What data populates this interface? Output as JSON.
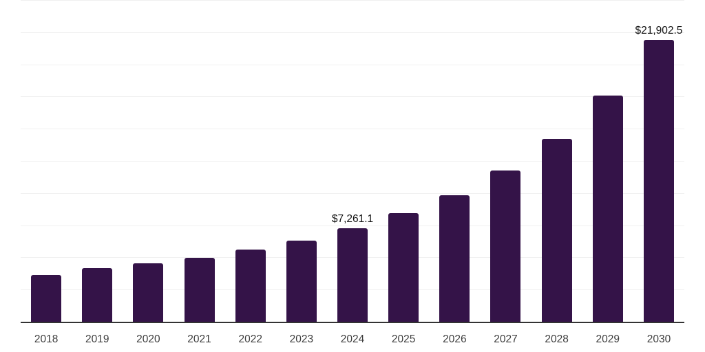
{
  "chart_data": {
    "type": "bar",
    "title": "",
    "xlabel": "",
    "ylabel": "",
    "categories": [
      "2018",
      "2019",
      "2020",
      "2021",
      "2022",
      "2023",
      "2024",
      "2025",
      "2026",
      "2027",
      "2028",
      "2029",
      "2030"
    ],
    "values": [
      3620,
      4190,
      4540,
      4970,
      5610,
      6330,
      7261.1,
      8420,
      9840,
      11760,
      14210,
      17550,
      21902.5
    ],
    "value_labels": {
      "2024": "$7,261.1",
      "2030": "$21,902.5"
    },
    "ylim": [
      0,
      25000
    ],
    "gridline_interval": 2500,
    "grid": "horizontal",
    "legend": "none",
    "colors": {
      "bar": "#341348",
      "axis_line": "#333333",
      "gridline": "#f0f0f0",
      "value_label": "#111111",
      "tick_label": "#3d3d3d",
      "background": "#ffffff"
    }
  }
}
